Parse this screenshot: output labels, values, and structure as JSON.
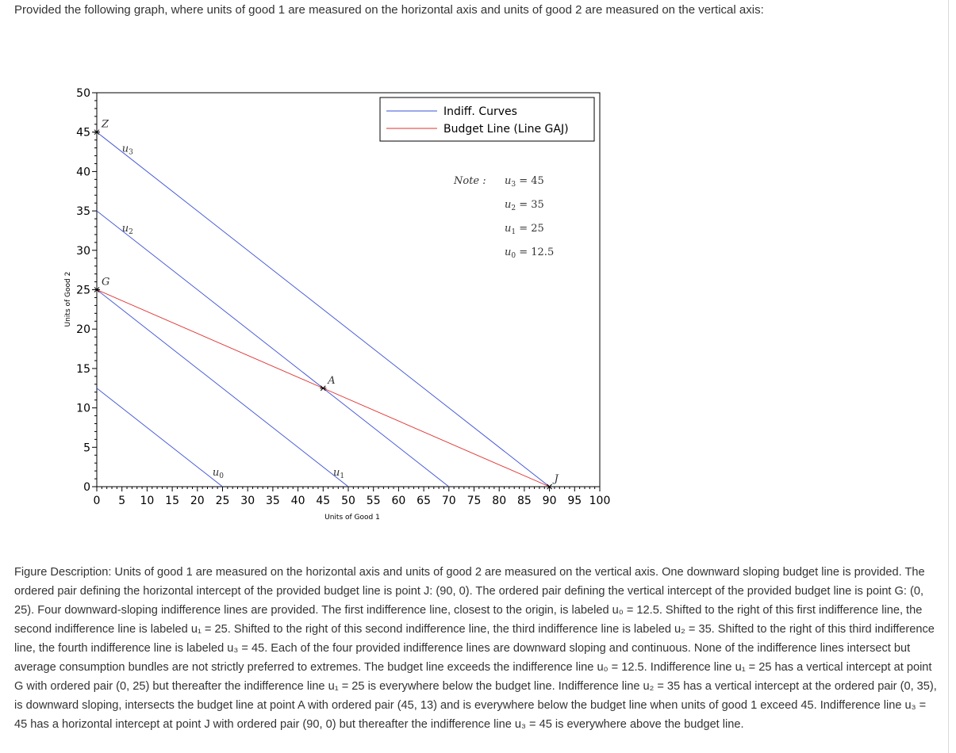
{
  "intro_text": "Provided the following graph, where units of good 1 are measured on the horizontal axis and units of good 2 are measured on the vertical axis:",
  "colors": {
    "indiff": "#3a4fd6",
    "budget": "#e03030",
    "text": "#333333"
  },
  "chart_data": {
    "type": "line",
    "xlabel": "Units of Good 1",
    "ylabel": "Units of Good 2",
    "xlim": [
      0,
      100
    ],
    "ylim": [
      0,
      50
    ],
    "xticks": [
      0,
      5,
      10,
      15,
      20,
      25,
      30,
      35,
      40,
      45,
      50,
      55,
      60,
      65,
      70,
      75,
      80,
      85,
      90,
      95,
      100
    ],
    "yticks": [
      0,
      5,
      10,
      15,
      20,
      25,
      30,
      35,
      40,
      45,
      50
    ],
    "grid": false,
    "legend": {
      "placement": "top-right",
      "entries": [
        {
          "label": "Indiff. Curves",
          "color": "#3a4fd6"
        },
        {
          "label": "Budget Line (Line GAJ)",
          "color": "#e03030"
        }
      ]
    },
    "series": [
      {
        "name": "u0",
        "kind": "indiff",
        "points": [
          [
            0,
            12.5
          ],
          [
            25,
            0
          ]
        ]
      },
      {
        "name": "u1",
        "kind": "indiff",
        "points": [
          [
            0,
            25
          ],
          [
            50,
            0
          ]
        ]
      },
      {
        "name": "u2",
        "kind": "indiff",
        "points": [
          [
            0,
            35
          ],
          [
            70,
            0
          ]
        ]
      },
      {
        "name": "u3",
        "kind": "indiff",
        "points": [
          [
            0,
            45
          ],
          [
            90,
            0
          ]
        ]
      },
      {
        "name": "Budget Line (Line GAJ)",
        "kind": "budget",
        "points": [
          [
            0,
            25
          ],
          [
            45,
            12.5
          ],
          [
            90,
            0
          ]
        ]
      }
    ],
    "curve_labels": [
      {
        "text": "u3",
        "x": 5,
        "y": 42.5
      },
      {
        "text": "u2",
        "x": 5,
        "y": 32.4
      },
      {
        "text": "u1",
        "x": 47,
        "y": 1.4
      },
      {
        "text": "u0",
        "x": 23,
        "y": 1.4
      }
    ],
    "points": [
      {
        "label": "Z",
        "x": 0,
        "y": 45
      },
      {
        "label": "G",
        "x": 0,
        "y": 25
      },
      {
        "label": "A",
        "x": 45,
        "y": 12.5
      },
      {
        "label": "J",
        "x": 90,
        "y": 0
      }
    ],
    "note": {
      "title": "Note :",
      "lines": [
        "u3 = 45",
        "u2 = 35",
        "u1 = 25",
        "u0 = 12.5"
      ]
    }
  },
  "description": "Figure Description: Units of good 1 are measured on the horizontal axis and units of good 2 are measured on the vertical axis. One downward sloping budget line is provided. The ordered pair defining the horizontal intercept of the provided budget line is point J: (90, 0). The ordered pair defining the vertical intercept of the provided budget line is point G: (0, 25). Four downward-sloping indifference lines are provided. The first indifference line, closest to the origin, is labeled u₀ = 12.5. Shifted to the right of this first indifference line, the second indifference line is labeled u₁ = 25. Shifted to the right of this second indifference line, the third indifference line is labeled u₂ = 35. Shifted to the right of this third indifference line, the fourth indifference line is labeled u₃ = 45. Each of the four provided indifference lines are downward sloping and continuous. None of the indifference lines intersect but average consumption bundles are not strictly preferred to extremes. The budget line exceeds the indifference line u₀ = 12.5. Indifference line u₁ = 25 has a vertical intercept at point G with ordered pair (0, 25) but thereafter the indifference line u₁ = 25 is everywhere below the budget line. Indifference line u₂ = 35 has a vertical intercept at the ordered pair (0, 35), is downward sloping, intersects the budget line at point A with ordered pair (45, 13) and is everywhere below the budget line when units of good 1 exceed 45. Indifference line u₃ = 45 has a horizontal intercept at point J with ordered pair (90, 0) but thereafter the indifference line u₃ = 45 is everywhere above the budget line."
}
